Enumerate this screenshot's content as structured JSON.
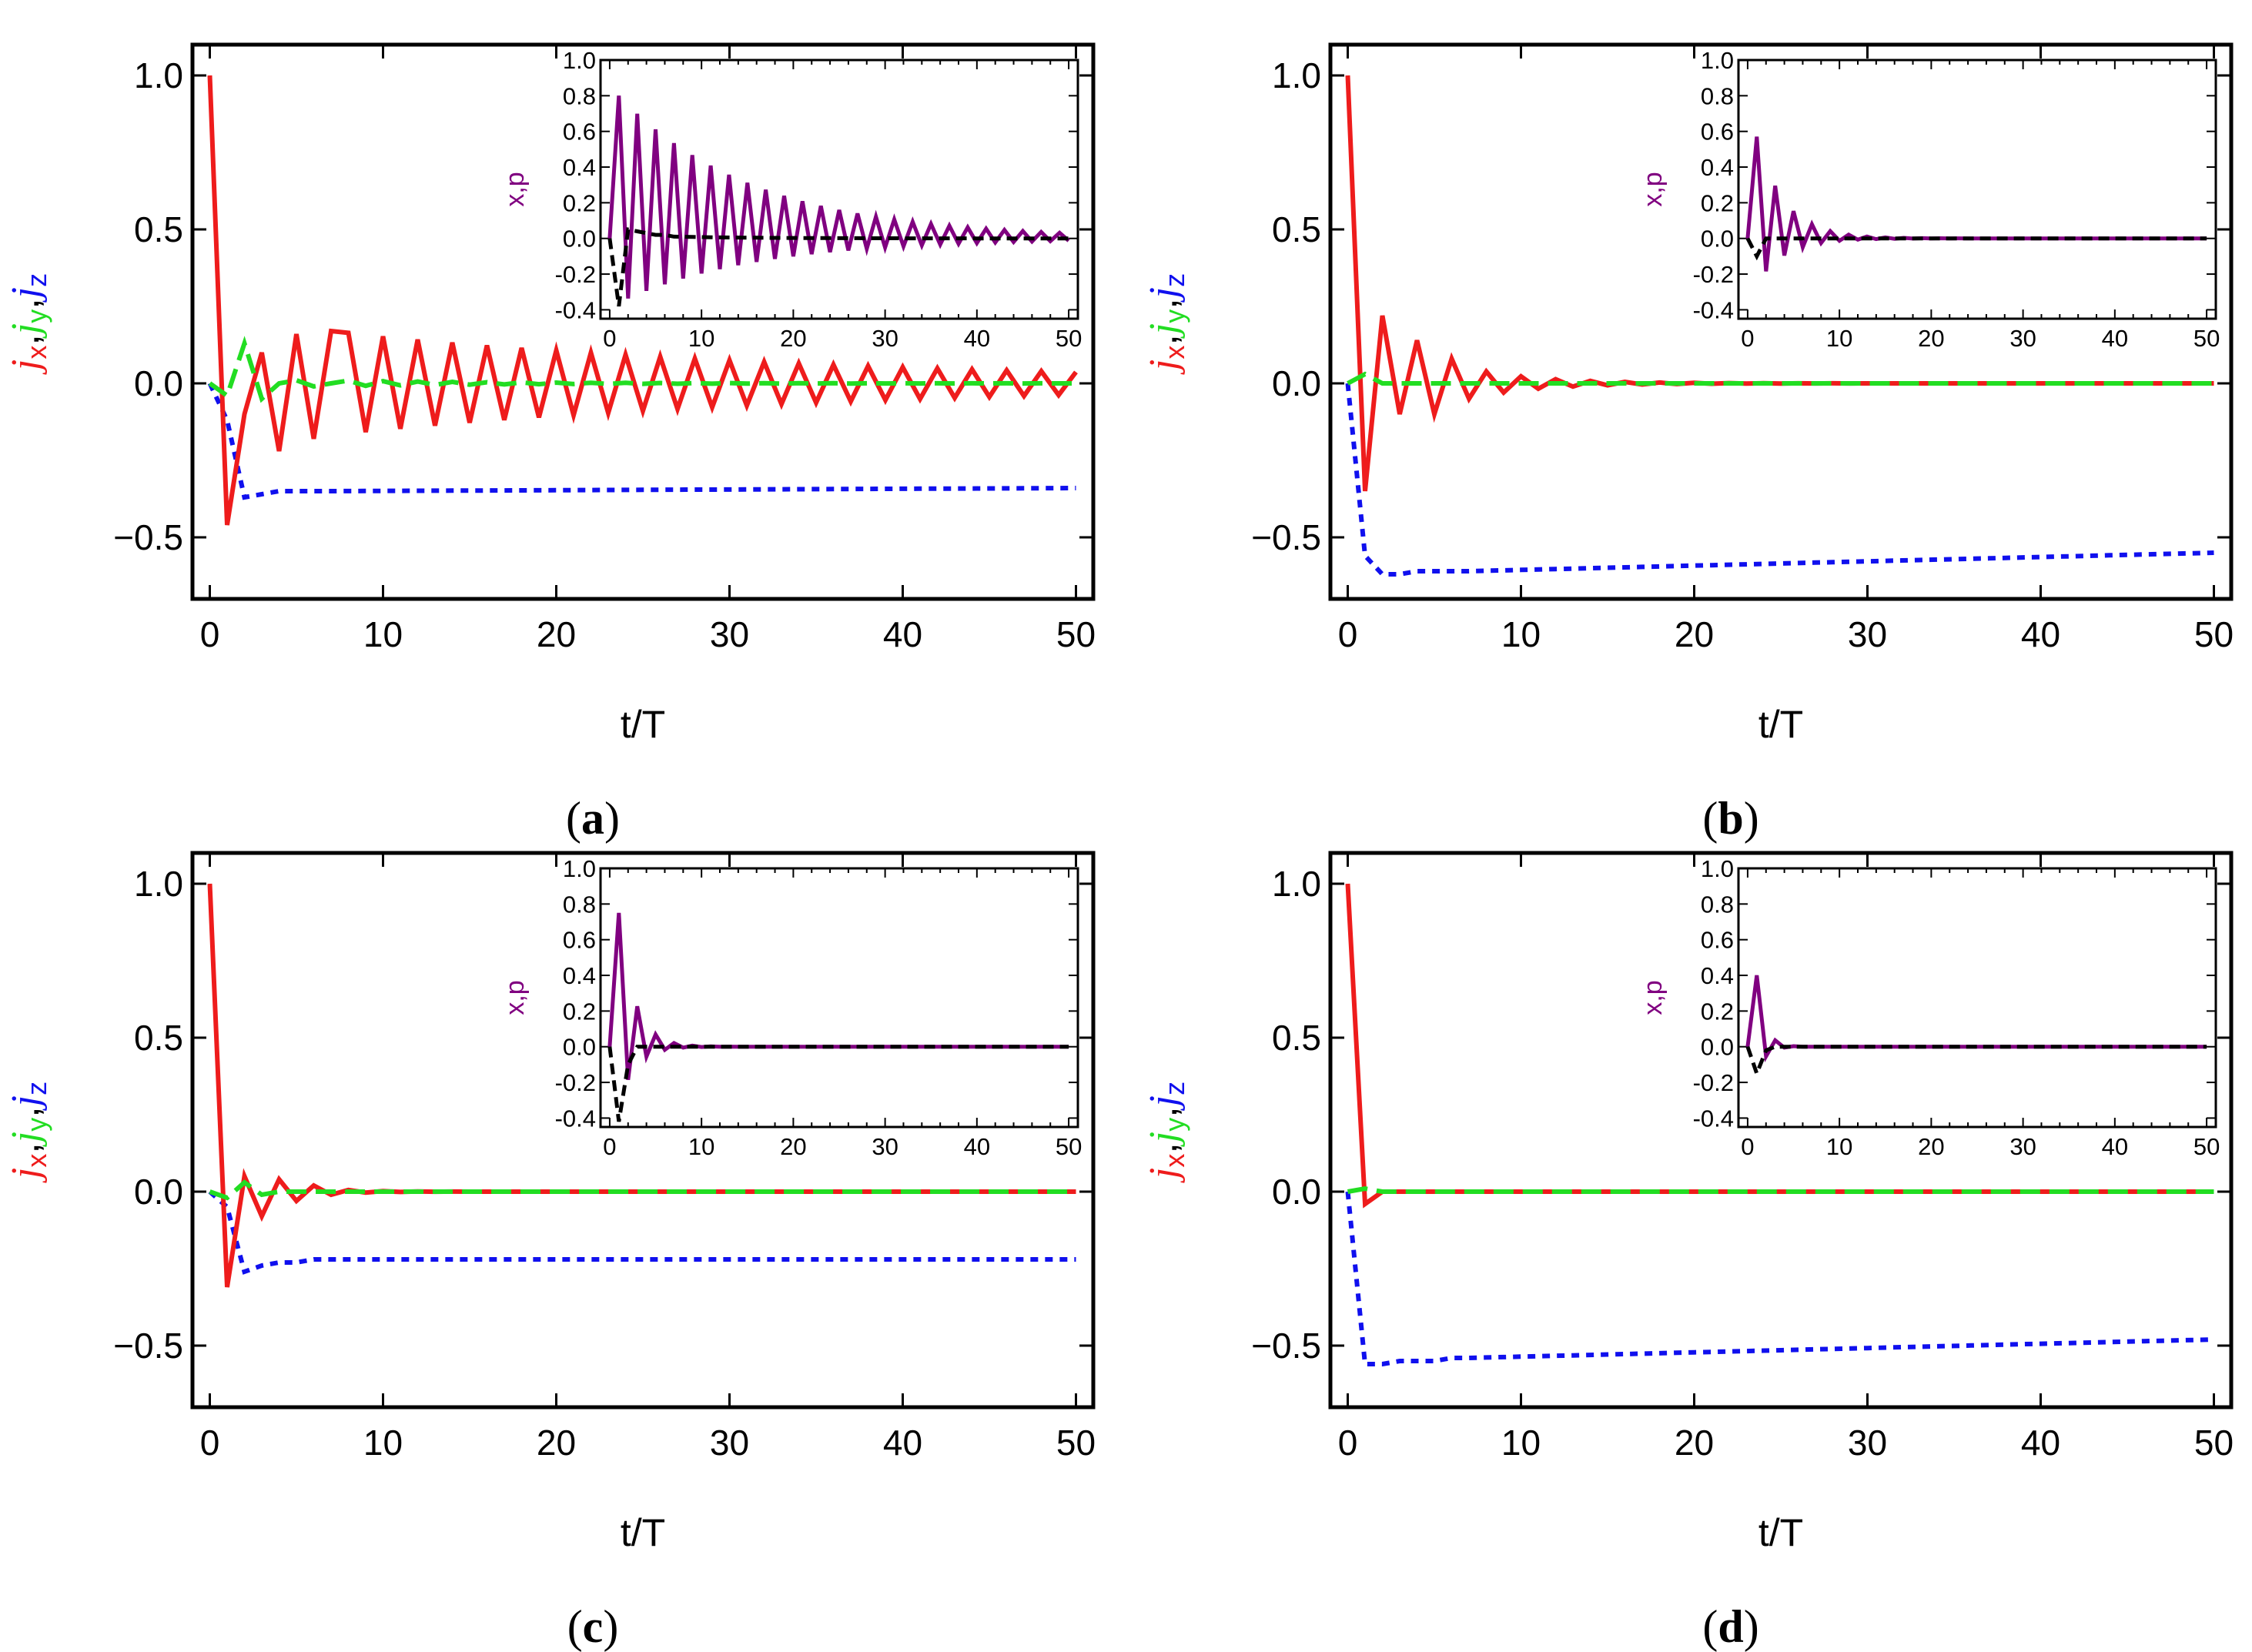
{
  "figure": {
    "panels": [
      "a",
      "b",
      "c",
      "d"
    ]
  },
  "colors": {
    "jx": "#ee1c1c",
    "jy": "#22dd22",
    "jz": "#1010ee",
    "x": "#800080",
    "p": "#000000"
  },
  "chart_data": [
    {
      "type": "line",
      "panel": "(a)",
      "panel_letter": "a",
      "xlabel": "t/T",
      "ylabel_parts": [
        "j",
        "x",
        ",",
        "j",
        "y",
        ",",
        "j",
        "z"
      ],
      "xlim": [
        -1,
        51
      ],
      "ylim": [
        -0.7,
        1.1
      ],
      "xticks": [
        0,
        10,
        20,
        30,
        40,
        50
      ],
      "yticks": [
        -0.5,
        0.0,
        0.5,
        1.0
      ],
      "ytick_labels": [
        "−0.5",
        "0.0",
        "0.5",
        "1.0"
      ],
      "series": [
        {
          "name": "jx",
          "style": "solid",
          "decay": 0.965,
          "pattern": [
            1.0,
            -0.46,
            -0.1,
            0.1,
            -0.22,
            0.16,
            -0.18,
            0.17
          ]
        },
        {
          "name": "jy",
          "style": "dashed",
          "decay": 0.9,
          "pattern": [
            0.0,
            -0.04,
            0.13,
            -0.05,
            0.0,
            0.01,
            -0.01,
            0.0
          ]
        },
        {
          "name": "jz",
          "style": "dotted",
          "final": -0.34,
          "pattern": [
            0.0,
            -0.12,
            -0.37,
            -0.36,
            -0.35,
            -0.35,
            -0.35,
            -0.35
          ]
        }
      ],
      "inset": {
        "ylabel": "x,p",
        "xlim": [
          -1,
          51
        ],
        "ylim": [
          -0.45,
          1.0
        ],
        "xticks": [
          0,
          10,
          20,
          30,
          40,
          50
        ],
        "yticks": [
          -0.4,
          -0.2,
          0.0,
          0.2,
          0.4,
          0.6,
          0.8,
          1.0
        ],
        "ytick_labels": [
          "-0.4",
          "-0.2",
          "0.0",
          "0.2",
          "0.4",
          "0.6",
          "0.8",
          "1.0"
        ],
        "series": [
          {
            "name": "x",
            "style": "solid",
            "amp": 0.8,
            "decay": 0.935,
            "peak_t": 1
          },
          {
            "name": "p",
            "style": "dashed",
            "pattern": [
              0.0,
              -0.38,
              0.05,
              0.04,
              0.03,
              0.02,
              0.02,
              0.01
            ]
          }
        ]
      }
    },
    {
      "type": "line",
      "panel": "(b)",
      "panel_letter": "b",
      "xlabel": "t/T",
      "ylabel_parts": [
        "j",
        "x",
        ",",
        "j",
        "y",
        ",",
        "j",
        "z"
      ],
      "xlim": [
        -1,
        51
      ],
      "ylim": [
        -0.7,
        1.1
      ],
      "xticks": [
        0,
        10,
        20,
        30,
        40,
        50
      ],
      "yticks": [
        -0.5,
        0.0,
        0.5,
        1.0
      ],
      "ytick_labels": [
        "−0.5",
        "0.0",
        "0.5",
        "1.0"
      ],
      "series": [
        {
          "name": "jx",
          "style": "solid",
          "decay": 0.77,
          "pattern": [
            1.0,
            -0.35,
            0.22,
            -0.1,
            0.14,
            -0.1,
            0.08,
            -0.05
          ]
        },
        {
          "name": "jy",
          "style": "dashed",
          "decay": 0.6,
          "pattern": [
            0.0,
            0.03,
            0.0,
            0.0,
            0.0,
            0.0,
            0.0,
            0.0
          ]
        },
        {
          "name": "jz",
          "style": "dotted",
          "final": -0.55,
          "pattern": [
            0.0,
            -0.56,
            -0.62,
            -0.62,
            -0.61,
            -0.61,
            -0.61,
            -0.61
          ]
        }
      ],
      "inset": {
        "ylabel": "x,p",
        "xlim": [
          -1,
          51
        ],
        "ylim": [
          -0.45,
          1.0
        ],
        "xticks": [
          0,
          10,
          20,
          30,
          40,
          50
        ],
        "yticks": [
          -0.4,
          -0.2,
          0.0,
          0.2,
          0.4,
          0.6,
          0.8,
          1.0
        ],
        "ytick_labels": [
          "-0.4",
          "-0.2",
          "0.0",
          "0.2",
          "0.4",
          "0.6",
          "0.8",
          "1.0"
        ],
        "series": [
          {
            "name": "x",
            "style": "solid",
            "amp": 0.57,
            "decay": 0.72,
            "peak_t": 1
          },
          {
            "name": "p",
            "style": "dashed",
            "pattern": [
              0.0,
              -0.1,
              0.0,
              0.0,
              0.0,
              0.0,
              0.0,
              0.0
            ]
          }
        ]
      }
    },
    {
      "type": "line",
      "panel": "(c)",
      "panel_letter": "c",
      "xlabel": "t/T",
      "ylabel_parts": [
        "j",
        "x",
        ",",
        "j",
        "y",
        ",",
        "j",
        "z"
      ],
      "xlim": [
        -1,
        51
      ],
      "ylim": [
        -0.7,
        1.1
      ],
      "xticks": [
        0,
        10,
        20,
        30,
        40,
        50
      ],
      "yticks": [
        -0.5,
        0.0,
        0.5,
        1.0
      ],
      "ytick_labels": [
        "−0.5",
        "0.0",
        "0.5",
        "1.0"
      ],
      "series": [
        {
          "name": "jx",
          "style": "solid",
          "decay": 0.55,
          "pattern": [
            1.0,
            -0.31,
            0.05,
            -0.08,
            0.04,
            -0.03,
            0.02,
            -0.01
          ]
        },
        {
          "name": "jy",
          "style": "dashed",
          "decay": 0.5,
          "pattern": [
            0.0,
            -0.02,
            0.03,
            -0.01,
            0.0,
            0.0,
            0.0,
            0.0
          ]
        },
        {
          "name": "jz",
          "style": "dotted",
          "final": -0.22,
          "pattern": [
            0.0,
            -0.05,
            -0.26,
            -0.24,
            -0.23,
            -0.23,
            -0.22,
            -0.22
          ]
        }
      ],
      "inset": {
        "ylabel": "x,p",
        "xlim": [
          -1,
          51
        ],
        "ylim": [
          -0.45,
          1.0
        ],
        "xticks": [
          0,
          10,
          20,
          30,
          40,
          50
        ],
        "yticks": [
          -0.4,
          -0.2,
          0.0,
          0.2,
          0.4,
          0.6,
          0.8,
          1.0
        ],
        "ytick_labels": [
          "-0.4",
          "-0.2",
          "0.0",
          "0.2",
          "0.4",
          "0.6",
          "0.8",
          "1.0"
        ],
        "series": [
          {
            "name": "x",
            "style": "solid",
            "amp": 0.75,
            "decay": 0.55,
            "peak_t": 1
          },
          {
            "name": "p",
            "style": "dashed",
            "pattern": [
              0.0,
              -0.42,
              -0.1,
              0.0,
              0.0,
              0.0,
              0.0,
              0.0
            ]
          }
        ]
      }
    },
    {
      "type": "line",
      "panel": "(d)",
      "panel_letter": "d",
      "xlabel": "t/T",
      "ylabel_parts": [
        "j",
        "x",
        ",",
        "j",
        "y",
        ",",
        "j",
        "z"
      ],
      "xlim": [
        -1,
        51
      ],
      "ylim": [
        -0.7,
        1.1
      ],
      "xticks": [
        0,
        10,
        20,
        30,
        40,
        50
      ],
      "yticks": [
        -0.5,
        0.0,
        0.5,
        1.0
      ],
      "ytick_labels": [
        "−0.5",
        "0.0",
        "0.5",
        "1.0"
      ],
      "series": [
        {
          "name": "jx",
          "style": "solid",
          "decay": 0.3,
          "pattern": [
            1.0,
            -0.04,
            0.0,
            0.0,
            0.0,
            0.0,
            0.0,
            0.0
          ]
        },
        {
          "name": "jy",
          "style": "dashed",
          "decay": 0.3,
          "pattern": [
            0.0,
            0.01,
            0.0,
            0.0,
            0.0,
            0.0,
            0.0,
            0.0
          ]
        },
        {
          "name": "jz",
          "style": "dotted",
          "final": -0.48,
          "pattern": [
            0.0,
            -0.56,
            -0.56,
            -0.55,
            -0.55,
            -0.55,
            -0.54,
            -0.54
          ]
        }
      ],
      "inset": {
        "ylabel": "x,p",
        "xlim": [
          -1,
          51
        ],
        "ylim": [
          -0.45,
          1.0
        ],
        "xticks": [
          0,
          10,
          20,
          30,
          40,
          50
        ],
        "yticks": [
          -0.4,
          -0.2,
          0.0,
          0.2,
          0.4,
          0.6,
          0.8,
          1.0
        ],
        "ytick_labels": [
          "-0.4",
          "-0.2",
          "0.0",
          "0.2",
          "0.4",
          "0.6",
          "0.8",
          "1.0"
        ],
        "series": [
          {
            "name": "x",
            "style": "solid",
            "amp": 0.4,
            "decay": 0.3,
            "peak_t": 1
          },
          {
            "name": "p",
            "style": "dashed",
            "pattern": [
              0.0,
              -0.15,
              -0.02,
              0.0,
              0.0,
              0.0,
              0.0,
              0.0
            ]
          }
        ]
      }
    }
  ]
}
